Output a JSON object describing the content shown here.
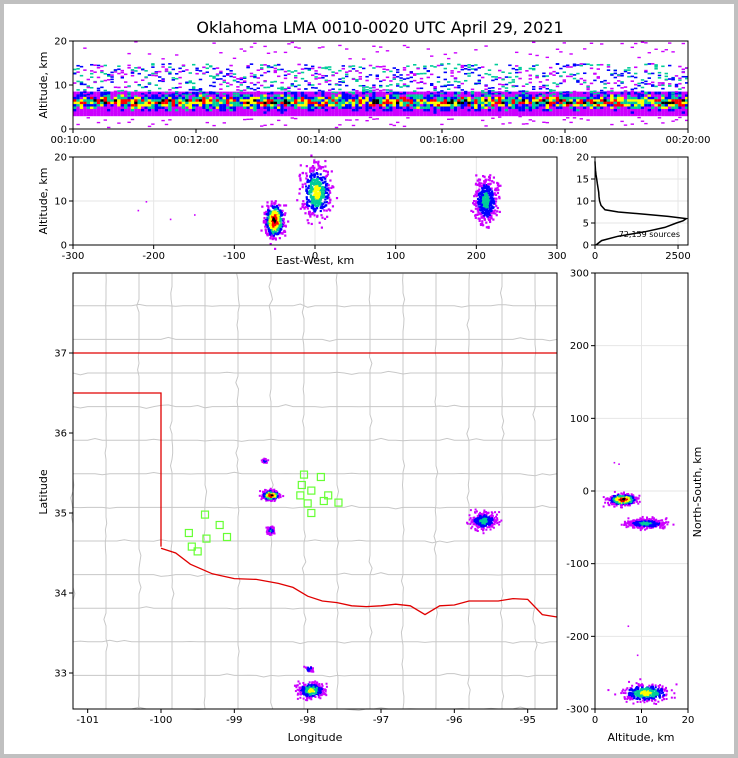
{
  "colors": {
    "background_frame": "#c0c0c0",
    "state_border": "#e00000",
    "county_lines": "#c8c8c8",
    "stations": "#66ff33",
    "density_low": "#cc00ff",
    "density_mid_low": "#0000ff",
    "density_mid": "#00cc99",
    "density_mid_high": "#ffff00",
    "density_high": "#ff0000",
    "density_peak": "#000000"
  },
  "chart_data": [
    {
      "id": "time-height",
      "type": "heatmap",
      "title": "Oklahoma LMA 0010-0020 UTC April 29, 2021",
      "xlabel": "",
      "ylabel": "Altitude, km",
      "x_ticks": [
        "00:10:00",
        "00:12:00",
        "00:14:00",
        "00:16:00",
        "00:18:00",
        "00:20:00"
      ],
      "xlim_minutes": [
        10,
        20
      ],
      "ylim": [
        0,
        20
      ],
      "y_ticks": [
        0,
        10,
        20
      ],
      "density_band_km": [
        3,
        8
      ],
      "sparse_band_km": [
        8,
        15
      ]
    },
    {
      "id": "east-west-altitude",
      "type": "heatmap",
      "xlabel": "East-West, km",
      "ylabel": "Altitude, km",
      "xlim": [
        -300,
        300
      ],
      "ylim": [
        0,
        20
      ],
      "x_ticks": [
        -300,
        -200,
        -100,
        0,
        100,
        200,
        300
      ],
      "y_ticks": [
        0,
        10,
        20
      ],
      "clusters": [
        {
          "x_km": -50,
          "alt_km": 5.5,
          "x_spread": 12,
          "alt_spread": 4,
          "peak": "high"
        },
        {
          "x_km": 2,
          "alt_km": 12,
          "x_spread": 18,
          "alt_spread": 6,
          "peak": "mid_high"
        },
        {
          "x_km": 212,
          "alt_km": 10,
          "x_spread": 14,
          "alt_spread": 5,
          "peak": "mid"
        }
      ]
    },
    {
      "id": "altitude-histogram",
      "type": "line",
      "annotation": "72,159 sources",
      "xlim": [
        0,
        2800
      ],
      "ylim": [
        0,
        20
      ],
      "x_ticks": [
        0,
        2500
      ],
      "y_ticks": [
        0,
        5,
        10,
        15,
        20
      ],
      "points": [
        [
          30,
          0
        ],
        [
          200,
          1
        ],
        [
          700,
          2
        ],
        [
          1500,
          3
        ],
        [
          2100,
          4
        ],
        [
          2450,
          5
        ],
        [
          2650,
          5.5
        ],
        [
          2750,
          6
        ],
        [
          2200,
          6.5
        ],
        [
          1500,
          7
        ],
        [
          700,
          7.5
        ],
        [
          300,
          8
        ],
        [
          180,
          9
        ],
        [
          140,
          10
        ],
        [
          120,
          11
        ],
        [
          110,
          12
        ],
        [
          90,
          13
        ],
        [
          70,
          14
        ],
        [
          50,
          15
        ],
        [
          30,
          16
        ],
        [
          15,
          17
        ],
        [
          5,
          18
        ],
        [
          0,
          19
        ]
      ]
    },
    {
      "id": "plan-view-map",
      "type": "scatter",
      "xlabel": "Longitude",
      "ylabel": "Latitude",
      "xlim": [
        -101.2,
        -94.6
      ],
      "ylim": [
        32.55,
        38
      ],
      "x_ticks": [
        -101,
        -100,
        -99,
        -98,
        -97,
        -96,
        -95
      ],
      "y_ticks": [
        33,
        34,
        35,
        36,
        37
      ],
      "stations": [
        [
          -99.4,
          34.98
        ],
        [
          -99.2,
          34.85
        ],
        [
          -99.62,
          34.75
        ],
        [
          -99.38,
          34.68
        ],
        [
          -99.58,
          34.58
        ],
        [
          -99.5,
          34.52
        ],
        [
          -99.1,
          34.7
        ],
        [
          -98.05,
          35.48
        ],
        [
          -97.82,
          35.45
        ],
        [
          -98.08,
          35.35
        ],
        [
          -97.95,
          35.28
        ],
        [
          -98.1,
          35.22
        ],
        [
          -97.72,
          35.22
        ],
        [
          -98.0,
          35.12
        ],
        [
          -97.78,
          35.15
        ],
        [
          -97.58,
          35.13
        ],
        [
          -97.95,
          35.0
        ]
      ],
      "clusters": [
        {
          "lon": -98.5,
          "lat": 35.22,
          "lon_spread": 0.12,
          "lat_spread": 0.06,
          "peak": "high"
        },
        {
          "lon": -95.6,
          "lat": 34.9,
          "lon_spread": 0.18,
          "lat_spread": 0.1,
          "peak": "mid"
        },
        {
          "lon": -97.95,
          "lat": 32.78,
          "lon_spread": 0.18,
          "lat_spread": 0.1,
          "peak": "mid_high"
        },
        {
          "lon": -98.5,
          "lat": 34.78,
          "lon_spread": 0.04,
          "lat_spread": 0.04,
          "peak": "mid"
        },
        {
          "lon": -98.58,
          "lat": 35.65,
          "lon_spread": 0.04,
          "lat_spread": 0.03,
          "peak": "low"
        },
        {
          "lon": -97.98,
          "lat": 33.05,
          "lon_spread": 0.06,
          "lat_spread": 0.05,
          "peak": "low"
        }
      ]
    },
    {
      "id": "altitude-north-south",
      "type": "heatmap",
      "xlabel": "Altitude, km",
      "ylabel": "North-South, km",
      "xlim": [
        0,
        20
      ],
      "ylim": [
        -300,
        300
      ],
      "x_ticks": [
        0,
        10,
        20
      ],
      "y_ticks": [
        -300,
        -200,
        -100,
        0,
        100,
        200,
        300
      ],
      "clusters": [
        {
          "alt_km": 6,
          "ns_km": -12,
          "alt_spread": 3,
          "ns_spread": 8,
          "peak": "high"
        },
        {
          "alt_km": 11,
          "ns_km": -45,
          "alt_spread": 4,
          "ns_spread": 6,
          "peak": "mid"
        },
        {
          "alt_km": 11,
          "ns_km": -278,
          "alt_spread": 5,
          "ns_spread": 12,
          "peak": "mid_high"
        }
      ]
    }
  ]
}
